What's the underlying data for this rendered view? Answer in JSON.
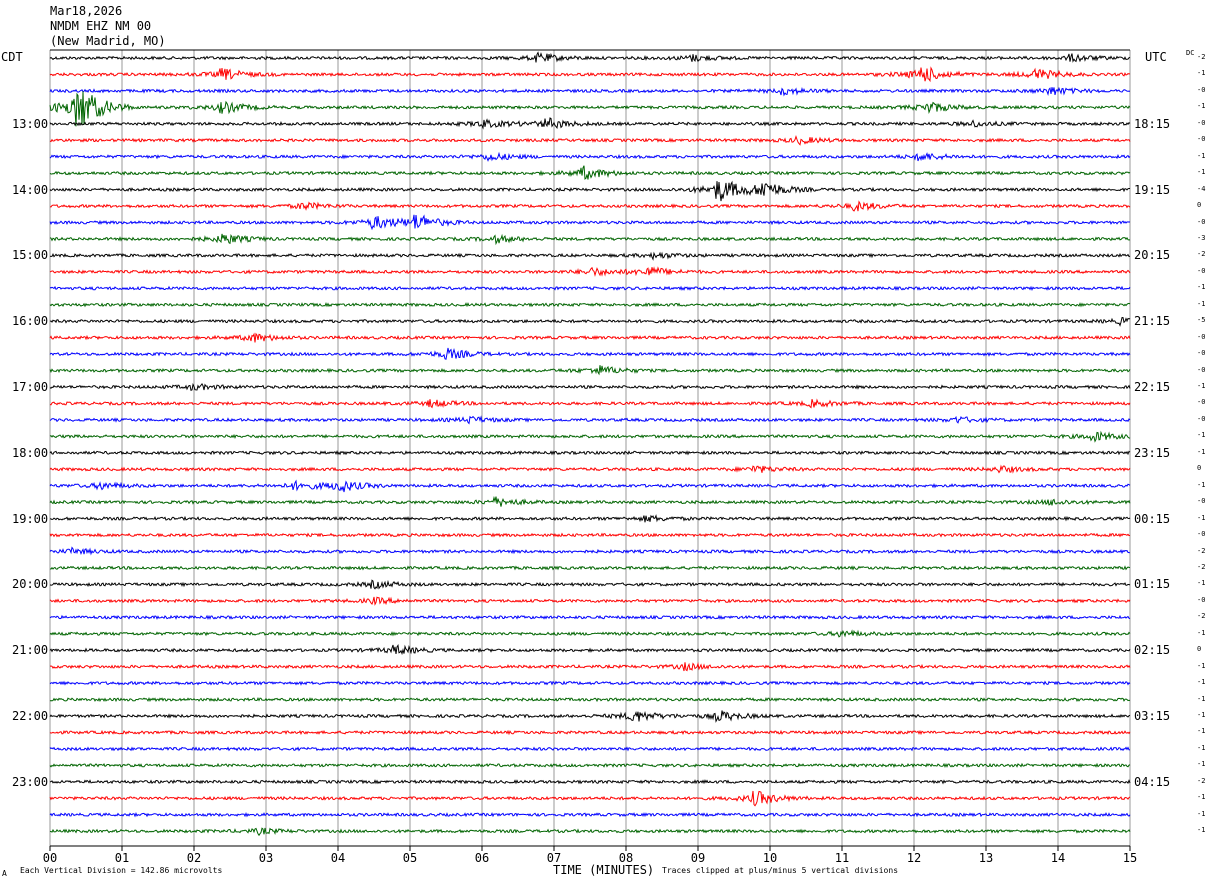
{
  "header": {
    "date": "Mar18,2026",
    "station": "NMDM EHZ NM 00",
    "location": "(New Madrid, MO)"
  },
  "left_timezone": "CDT",
  "right_timezone": "UTC",
  "dc_header": "DC",
  "colors": [
    "#000000",
    "#ff0000",
    "#0000ff",
    "#006400"
  ],
  "footer": {
    "scale_note": "Each Vertical Division =  142.86 microvolts",
    "clip_note": "Traces clipped at plus/minus 5 vertical divisions",
    "corner_mark": "A"
  },
  "chart_data": {
    "type": "line",
    "title": "",
    "xlabel": "TIME (MINUTES)",
    "ylabel": "",
    "xlim": [
      0,
      15
    ],
    "x_ticks": [
      "00",
      "01",
      "02",
      "03",
      "04",
      "05",
      "06",
      "07",
      "08",
      "09",
      "10",
      "11",
      "12",
      "13",
      "14",
      "15"
    ],
    "num_traces": 48,
    "left_labels": [
      "13:00",
      "14:00",
      "15:00",
      "16:00",
      "17:00",
      "18:00",
      "19:00",
      "20:00",
      "21:00",
      "22:00",
      "23:00"
    ],
    "right_labels": [
      "18:15",
      "19:15",
      "20:15",
      "21:15",
      "22:15",
      "23:15",
      "00:15",
      "01:15",
      "02:15",
      "03:15",
      "04:15"
    ],
    "dc_offsets": [
      "-2",
      "-1",
      "-0",
      "-1",
      "-0",
      "-0",
      "-1",
      "-1",
      "-4",
      "0",
      "-0",
      "-3",
      "-2",
      "-0",
      "-1",
      "-1",
      "-5",
      "-0",
      "-0",
      "-0",
      "-1",
      "-0",
      "-0",
      "-1",
      "-1",
      "0",
      "-1",
      "-0",
      "-1",
      "-0",
      "-2",
      "-2",
      "-1",
      "-0",
      "-2",
      "-1",
      "0",
      "-1",
      "-1",
      "-1",
      "-1",
      "-1",
      "-1",
      "-1",
      "-2",
      "-1",
      "-1",
      "-1"
    ],
    "events": [
      {
        "trace": 0,
        "minute": 6.8,
        "amp": 0.8
      },
      {
        "trace": 0,
        "minute": 8.9,
        "amp": 0.6
      },
      {
        "trace": 0,
        "minute": 14.2,
        "amp": 0.6
      },
      {
        "trace": 1,
        "minute": 2.4,
        "amp": 1.0
      },
      {
        "trace": 1,
        "minute": 12.1,
        "amp": 1.6
      },
      {
        "trace": 1,
        "minute": 13.7,
        "amp": 1.0
      },
      {
        "trace": 2,
        "minute": 10.2,
        "amp": 0.6
      },
      {
        "trace": 2,
        "minute": 13.9,
        "amp": 0.7
      },
      {
        "trace": 3,
        "minute": 0.4,
        "amp": 4.5
      },
      {
        "trace": 3,
        "minute": 2.4,
        "amp": 1.0
      },
      {
        "trace": 3,
        "minute": 12.2,
        "amp": 1.0
      },
      {
        "trace": 4,
        "minute": 6.0,
        "amp": 0.7
      },
      {
        "trace": 4,
        "minute": 6.9,
        "amp": 1.0
      },
      {
        "trace": 4,
        "minute": 12.8,
        "amp": 0.5
      },
      {
        "trace": 5,
        "minute": 10.4,
        "amp": 0.6
      },
      {
        "trace": 6,
        "minute": 6.1,
        "amp": 0.7
      },
      {
        "trace": 6,
        "minute": 12.1,
        "amp": 0.7
      },
      {
        "trace": 7,
        "minute": 7.4,
        "amp": 1.2
      },
      {
        "trace": 8,
        "minute": 9.3,
        "amp": 2.0
      },
      {
        "trace": 8,
        "minute": 9.9,
        "amp": 1.6
      },
      {
        "trace": 9,
        "minute": 3.5,
        "amp": 0.6
      },
      {
        "trace": 9,
        "minute": 11.2,
        "amp": 0.8
      },
      {
        "trace": 10,
        "minute": 4.5,
        "amp": 1.1
      },
      {
        "trace": 10,
        "minute": 5.1,
        "amp": 1.4
      },
      {
        "trace": 11,
        "minute": 2.4,
        "amp": 1.0
      },
      {
        "trace": 11,
        "minute": 6.2,
        "amp": 0.6
      },
      {
        "trace": 12,
        "minute": 8.4,
        "amp": 0.5
      },
      {
        "trace": 13,
        "minute": 7.5,
        "amp": 0.7
      },
      {
        "trace": 13,
        "minute": 8.3,
        "amp": 0.9
      },
      {
        "trace": 16,
        "minute": 14.9,
        "amp": 0.6
      },
      {
        "trace": 17,
        "minute": 2.8,
        "amp": 0.8
      },
      {
        "trace": 18,
        "minute": 5.5,
        "amp": 1.0
      },
      {
        "trace": 19,
        "minute": 7.6,
        "amp": 0.9
      },
      {
        "trace": 20,
        "minute": 2.0,
        "amp": 0.5
      },
      {
        "trace": 21,
        "minute": 5.3,
        "amp": 0.6
      },
      {
        "trace": 21,
        "minute": 10.6,
        "amp": 0.6
      },
      {
        "trace": 22,
        "minute": 5.8,
        "amp": 0.6
      },
      {
        "trace": 22,
        "minute": 12.6,
        "amp": 0.5
      },
      {
        "trace": 23,
        "minute": 14.5,
        "amp": 0.8
      },
      {
        "trace": 25,
        "minute": 9.8,
        "amp": 0.6
      },
      {
        "trace": 25,
        "minute": 13.2,
        "amp": 0.5
      },
      {
        "trace": 26,
        "minute": 0.7,
        "amp": 0.6
      },
      {
        "trace": 26,
        "minute": 3.4,
        "amp": 0.6
      },
      {
        "trace": 26,
        "minute": 4.0,
        "amp": 1.2
      },
      {
        "trace": 27,
        "minute": 6.2,
        "amp": 0.8
      },
      {
        "trace": 27,
        "minute": 13.9,
        "amp": 0.5
      },
      {
        "trace": 28,
        "minute": 8.3,
        "amp": 0.5
      },
      {
        "trace": 30,
        "minute": 0.3,
        "amp": 0.5
      },
      {
        "trace": 32,
        "minute": 4.5,
        "amp": 0.6
      },
      {
        "trace": 33,
        "minute": 4.5,
        "amp": 0.5
      },
      {
        "trace": 35,
        "minute": 11.0,
        "amp": 0.5
      },
      {
        "trace": 36,
        "minute": 4.8,
        "amp": 0.8
      },
      {
        "trace": 37,
        "minute": 8.8,
        "amp": 0.6
      },
      {
        "trace": 40,
        "minute": 8.1,
        "amp": 1.1
      },
      {
        "trace": 40,
        "minute": 9.3,
        "amp": 0.9
      },
      {
        "trace": 45,
        "minute": 9.8,
        "amp": 1.3
      },
      {
        "trace": 47,
        "minute": 2.9,
        "amp": 0.5
      }
    ]
  }
}
